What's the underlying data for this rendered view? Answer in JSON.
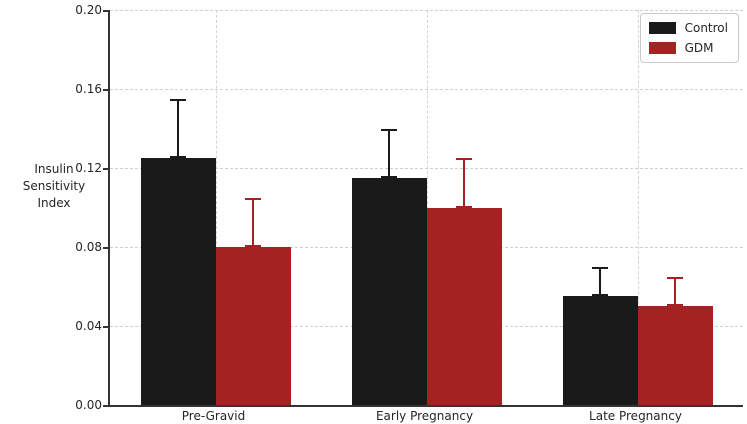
{
  "chart_data": {
    "type": "bar",
    "title": "",
    "ylabel_lines": [
      "Insulin",
      "Sensitivity",
      "Index"
    ],
    "xlabel": "",
    "categories": [
      "Pre-Gravid",
      "Early Pregnancy",
      "Late Pregnancy"
    ],
    "series": [
      {
        "name": "Control",
        "color": "#1a1a1a",
        "values": [
          0.125,
          0.115,
          0.055
        ],
        "errors_upper": [
          0.03,
          0.025,
          0.015
        ]
      },
      {
        "name": "GDM",
        "color": "#a42222",
        "values": [
          0.08,
          0.1,
          0.05
        ],
        "errors_upper": [
          0.025,
          0.025,
          0.015
        ]
      }
    ],
    "ylim": [
      0.0,
      0.2
    ],
    "yticks": [
      "0.00",
      "0.04",
      "0.08",
      "0.12",
      "0.16",
      "0.20"
    ],
    "grid": true,
    "legend_position": "upper right",
    "axis_color": "#333333",
    "grid_color": "#cfcfcf",
    "text_color": "#262626"
  }
}
